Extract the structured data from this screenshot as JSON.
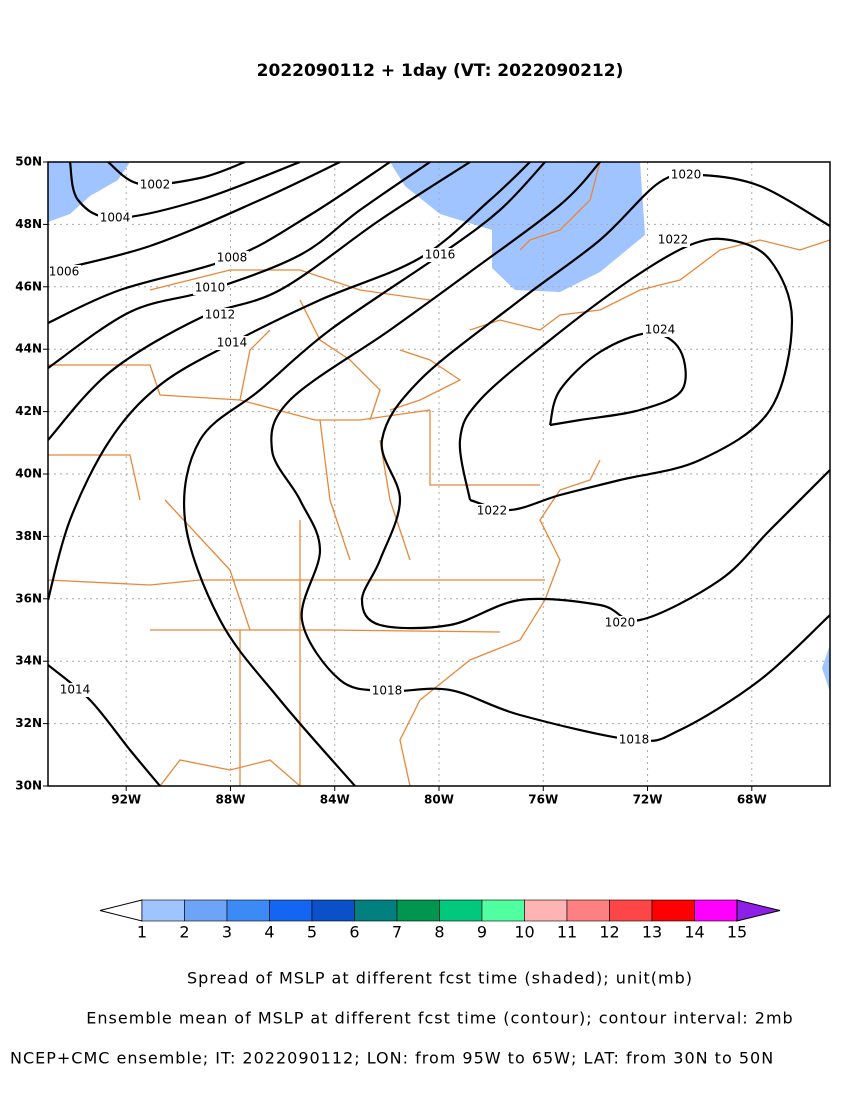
{
  "chart_data": {
    "type": "contour-map",
    "title": "2022090112 + 1day (VT: 2022090212)",
    "xlim": [
      -95,
      -65
    ],
    "ylim": [
      30,
      50
    ],
    "xticks": [
      {
        "value": -92,
        "label": "92W"
      },
      {
        "value": -88,
        "label": "88W"
      },
      {
        "value": -84,
        "label": "84W"
      },
      {
        "value": -80,
        "label": "80W"
      },
      {
        "value": -76,
        "label": "76W"
      },
      {
        "value": -72,
        "label": "72W"
      },
      {
        "value": -68,
        "label": "68W"
      }
    ],
    "yticks": [
      {
        "value": 30,
        "label": "30N"
      },
      {
        "value": 32,
        "label": "32N"
      },
      {
        "value": 34,
        "label": "34N"
      },
      {
        "value": 36,
        "label": "36N"
      },
      {
        "value": 38,
        "label": "38N"
      },
      {
        "value": 40,
        "label": "40N"
      },
      {
        "value": 42,
        "label": "42N"
      },
      {
        "value": 44,
        "label": "44N"
      },
      {
        "value": 46,
        "label": "46N"
      },
      {
        "value": 48,
        "label": "48N"
      },
      {
        "value": 50,
        "label": "50N"
      }
    ],
    "grid": true,
    "contour_levels": [
      1002,
      1004,
      1006,
      1008,
      1010,
      1012,
      1014,
      1016,
      1018,
      1020,
      1022,
      1024,
      1014
    ],
    "colorbar": {
      "levels": [
        1,
        2,
        3,
        4,
        5,
        6,
        7,
        8,
        9,
        10,
        11,
        12,
        13,
        14,
        15
      ],
      "colors": [
        "#ffffff",
        "#a0c4ff",
        "#6ea4f7",
        "#3c8af5",
        "#1466f2",
        "#0a50c8",
        "#00807f",
        "#00964f",
        "#00c87d",
        "#50ffa0",
        "#ffb4b4",
        "#ff8080",
        "#ff4646",
        "#ff0000",
        "#ff00ff",
        "#8c20e6"
      ]
    },
    "captions": [
      "Spread of MSLP at different fcst time (shaded); unit(mb)",
      "Ensemble mean of MSLP at different fcst time (contour); contour interval: 2mb",
      "NCEP+CMC ensemble; IT: 2022090112; LON: from 95W to 65W; LAT: from 30N to 50N"
    ]
  }
}
